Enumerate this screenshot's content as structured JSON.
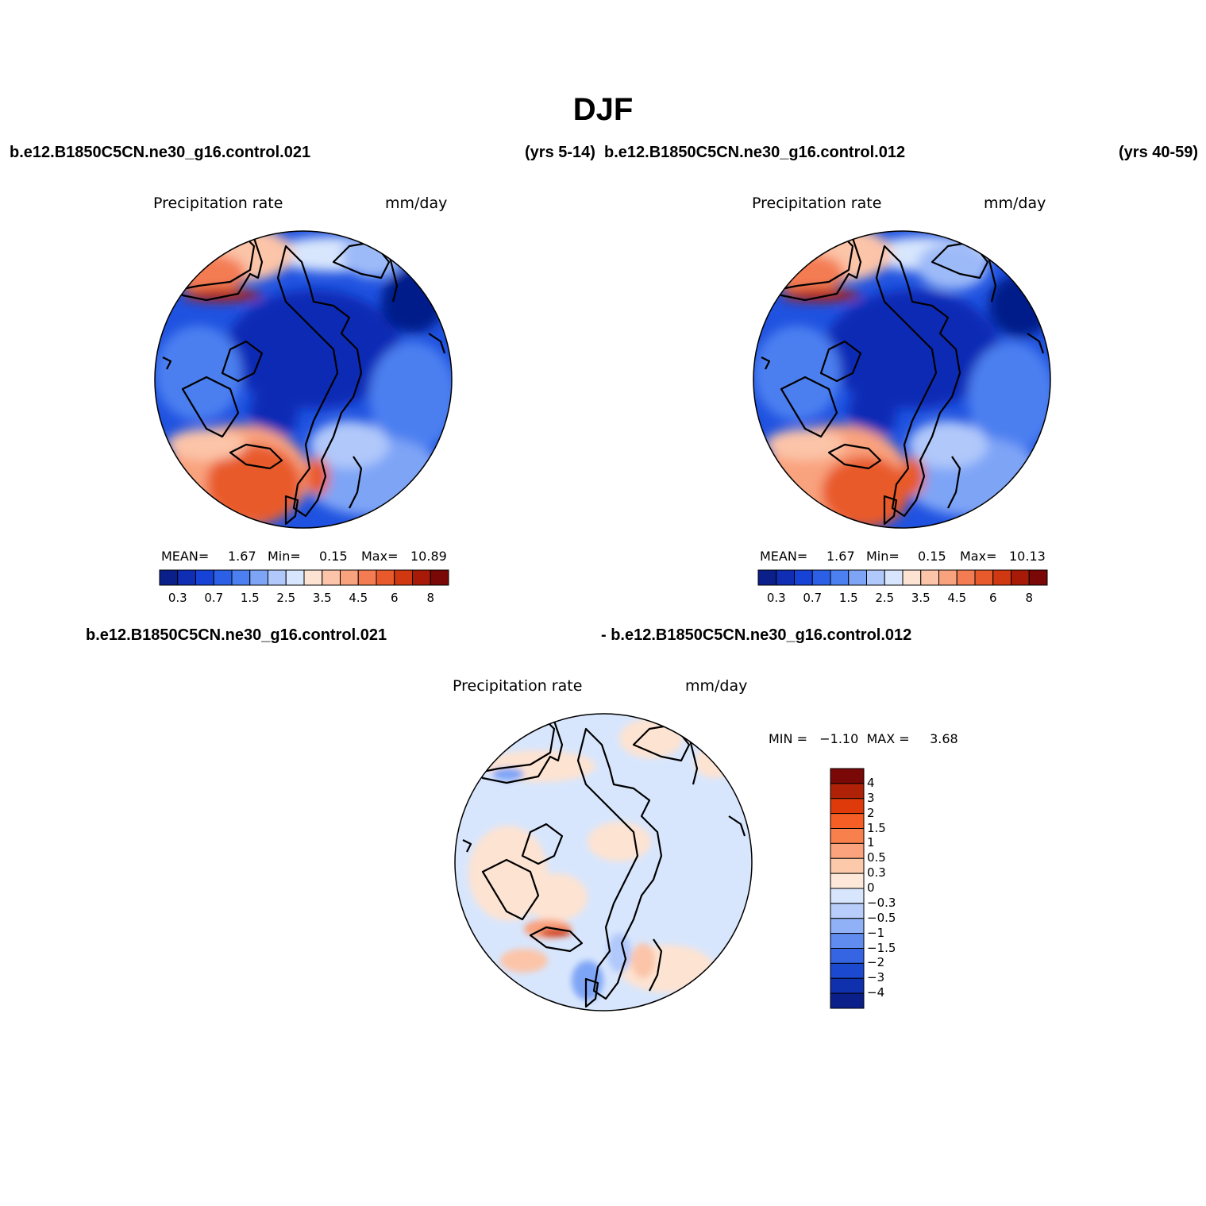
{
  "header": {
    "title": "DJF",
    "case1": "b.e12.B1850C5CN.ne30_g16.control.021",
    "case1_years": "(yrs 5-14)",
    "case2": "b.e12.B1850C5CN.ne30_g16.control.012",
    "case2_years": "(yrs 40-59)",
    "diff_case1": "b.e12.B1850C5CN.ne30_g16.control.021",
    "diff_case2": "- b.e12.B1850C5CN.ne30_g16.control.012"
  },
  "panels": [
    {
      "variable": "Precipitation rate",
      "units": "mm/day",
      "stats_text": [
        "MEAN=",
        "1.67",
        "Min=",
        "0.15",
        "Max=",
        "10.89"
      ]
    },
    {
      "variable": "Precipitation rate",
      "units": "mm/day",
      "stats_text": [
        "MEAN=",
        "1.67",
        "Min=",
        "0.15",
        "Max=",
        "10.13"
      ]
    }
  ],
  "difference": {
    "variable": "Precipitation rate",
    "units": "mm/day",
    "stats_text": "MIN =   −1.10  MAX =     3.68"
  },
  "colorbar_abs": {
    "colors": [
      "#0b1f8a",
      "#0f2eb3",
      "#1742d6",
      "#2b5fe6",
      "#4c7ff0",
      "#7ea4f6",
      "#b0c8fa",
      "#d8e6fd",
      "#fde3d2",
      "#fcc4a8",
      "#f9a27e",
      "#f47c52",
      "#e85a2c",
      "#cf3810",
      "#a81a08",
      "#7a0806"
    ],
    "labels": [
      "0.3",
      "0.7",
      "1.5",
      "2.5",
      "3.5",
      "4.5",
      "6",
      "8"
    ]
  },
  "colorbar_diff": {
    "colors": [
      "#7a0806",
      "#b02208",
      "#df3a0a",
      "#f55e24",
      "#f8804c",
      "#faa37c",
      "#fccaaa",
      "#fde8da",
      "#d8e6fd",
      "#b8cdf9",
      "#90b1f5",
      "#5f8cee",
      "#3665e3",
      "#1b49d0",
      "#0f31ae",
      "#0b1f8a"
    ],
    "labels": [
      "4",
      "3",
      "2",
      "1.5",
      "1",
      "0.5",
      "0.3",
      "0",
      "−0.3",
      "−0.5",
      "−1",
      "−1.5",
      "−2",
      "−3",
      "−4"
    ]
  },
  "colors": {
    "land_outline": "#000000",
    "map_edge": "#000000"
  }
}
